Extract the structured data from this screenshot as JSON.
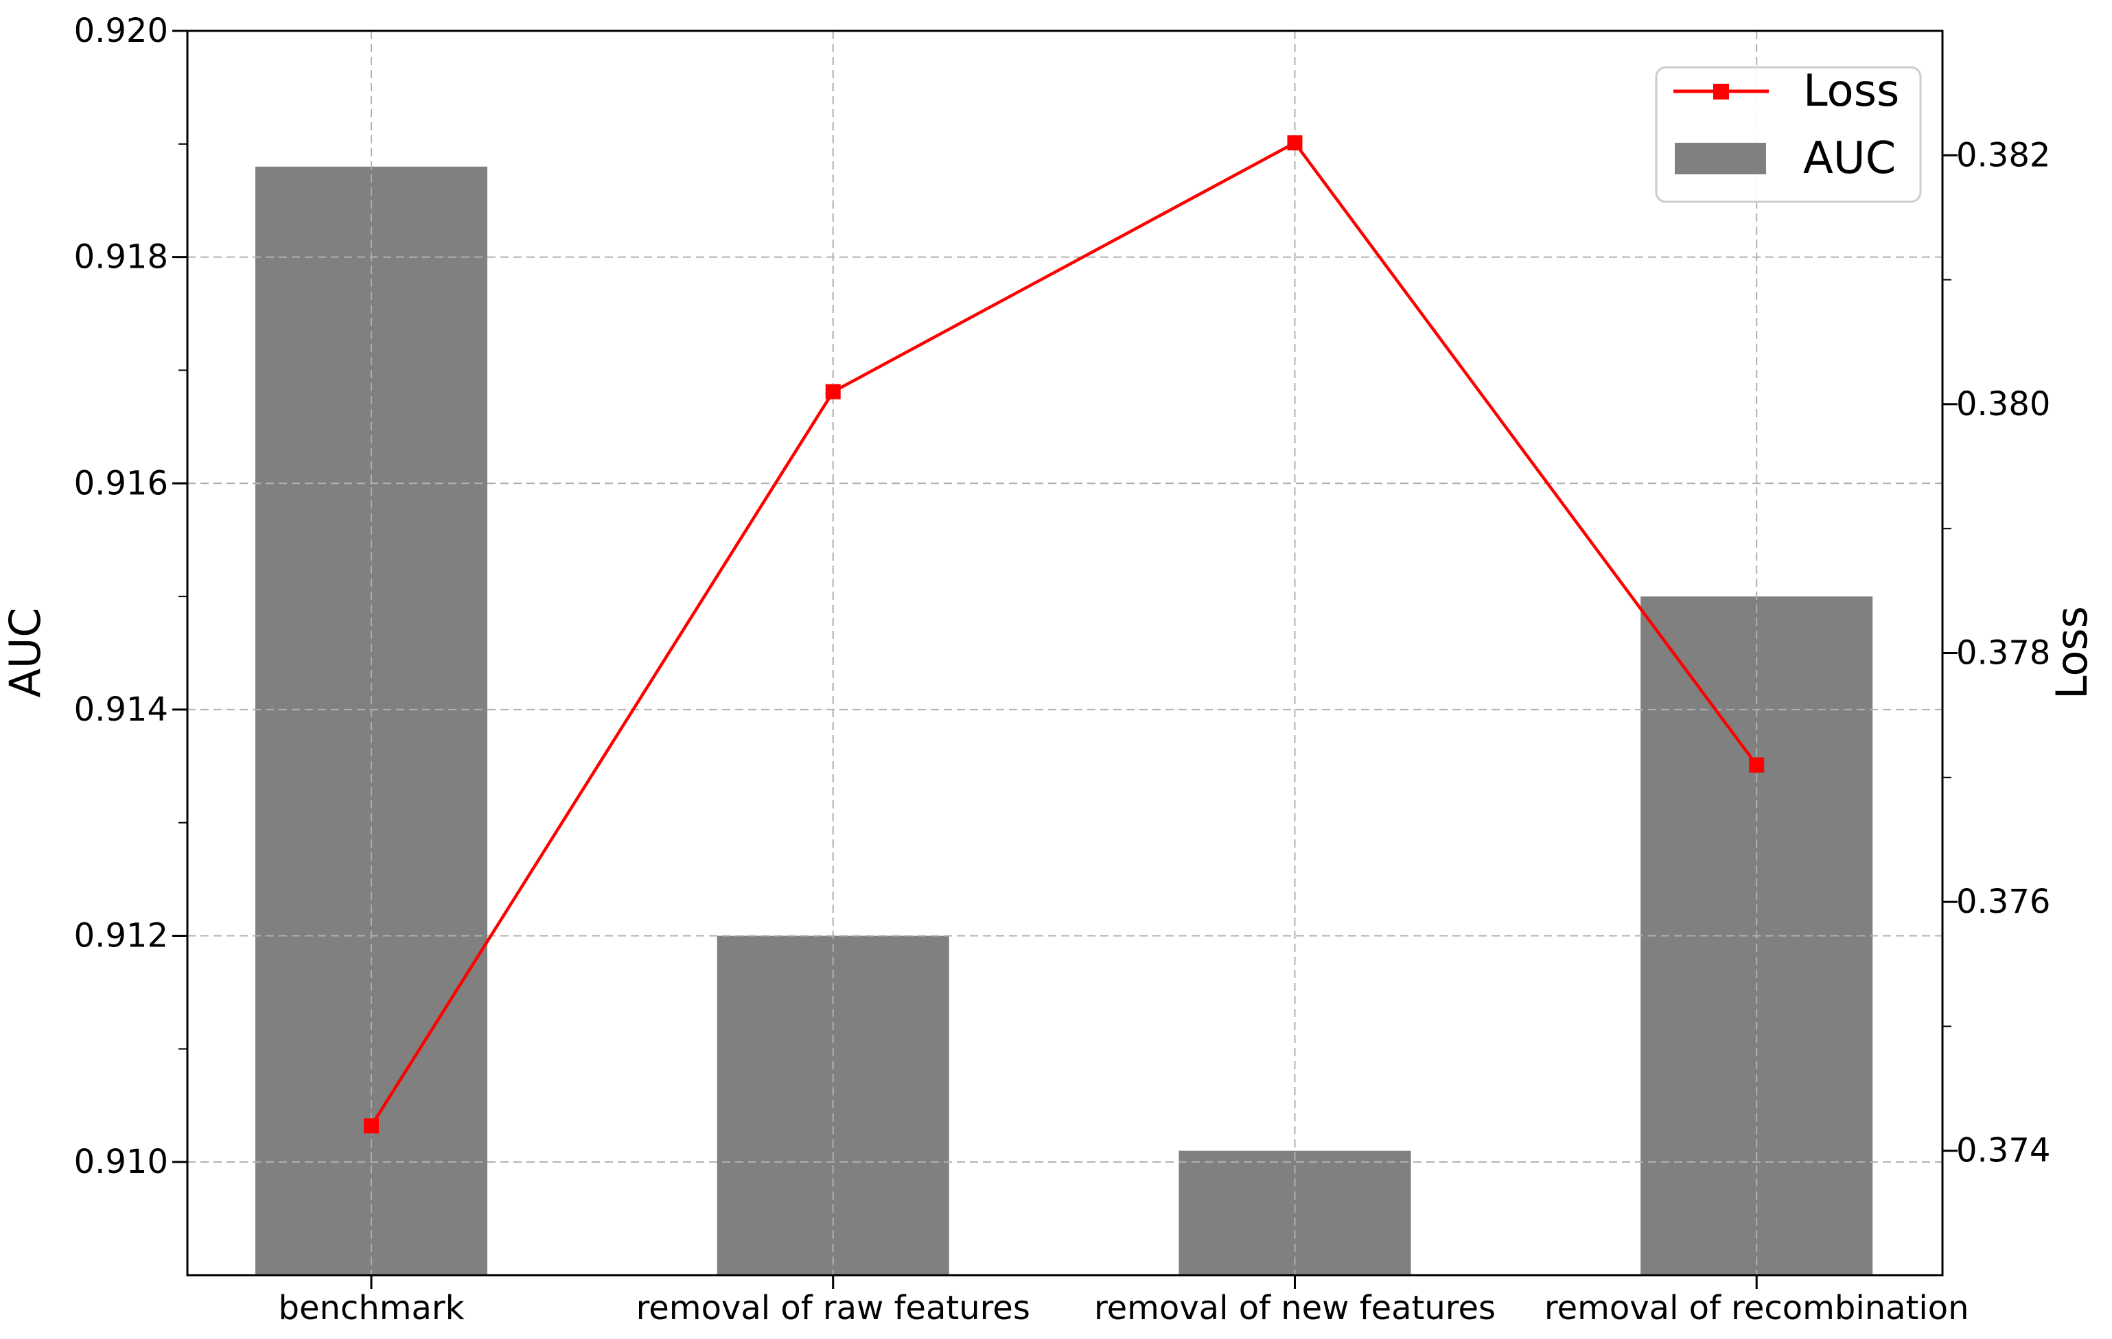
{
  "chart_data": {
    "type": "bar",
    "subtype": "dual-axis bar+line",
    "categories": [
      "benchmark",
      "removal of raw features",
      "removal of new features",
      "removal of recombination"
    ],
    "series": [
      {
        "name": "AUC",
        "type": "bar",
        "axis": "left",
        "color": "#808080",
        "values": [
          0.9188,
          0.912,
          0.9101,
          0.915
        ]
      },
      {
        "name": "Loss",
        "type": "line",
        "axis": "right",
        "color": "#ff0000",
        "marker": "square",
        "values": [
          0.3742,
          0.3801,
          0.3821,
          0.3771
        ]
      }
    ],
    "left_axis": {
      "label": "AUC",
      "ylim": [
        0.909,
        0.92
      ],
      "major_ticks": [
        0.91,
        0.912,
        0.914,
        0.916,
        0.918,
        0.92
      ],
      "minor_ticks": [
        0.911,
        0.913,
        0.915,
        0.917,
        0.919
      ],
      "tick_decimals": 3
    },
    "right_axis": {
      "label": "Loss",
      "ylim": [
        0.373,
        0.383
      ],
      "major_ticks": [
        0.374,
        0.376,
        0.378,
        0.38,
        0.382
      ],
      "minor_ticks": [
        0.375,
        0.377,
        0.379,
        0.381
      ],
      "tick_decimals": 3
    },
    "legend": {
      "position": "upper right",
      "entries": [
        {
          "label": "Loss",
          "swatch": "red-line-square-marker"
        },
        {
          "label": "AUC",
          "swatch": "gray-rect"
        }
      ]
    },
    "grid": {
      "style": "dashed",
      "color": "#b0b0b0",
      "horizontal": "left-axis majors",
      "vertical": "category centers"
    },
    "colors": {
      "bar": "#808080",
      "line": "#ff0000",
      "spine": "#000000",
      "grid": "#b0b0b0",
      "legend_border": "#cccccc",
      "background": "#ffffff"
    }
  }
}
